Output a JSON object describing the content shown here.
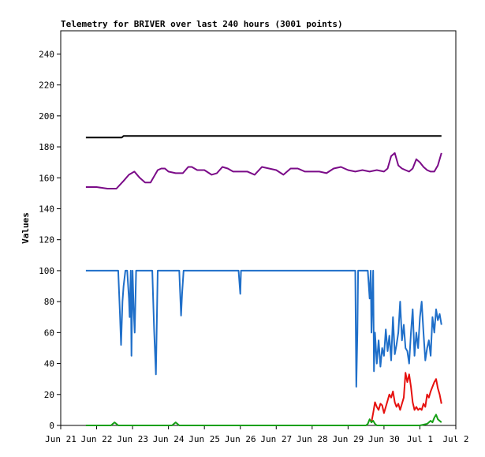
{
  "chart_data": {
    "type": "line",
    "title": "Telemetry for BRIVER over last 240 hours (3001 points)",
    "xlabel": "",
    "ylabel": "Values",
    "ylim": [
      0,
      255
    ],
    "xlim": [
      0,
      11
    ],
    "yticks": [
      0,
      20,
      40,
      60,
      80,
      100,
      120,
      140,
      160,
      180,
      200,
      220,
      240
    ],
    "xtick_labels": [
      "Jun 21",
      "Jun 22",
      "Jun 23",
      "Jun 24",
      "Jun 25",
      "Jun 26",
      "Jun 27",
      "Jun 28",
      "Jun 29",
      "Jun 30",
      "Jul 1",
      "Jul 2"
    ],
    "grid": false,
    "legend": "none",
    "series": [
      {
        "color": "#000000",
        "x": [
          0.7,
          1.7,
          1.75,
          3.0,
          6.0,
          9.0,
          10.6
        ],
        "y": [
          186,
          186,
          187,
          187,
          187,
          187,
          187
        ]
      },
      {
        "color": "#7b0b88",
        "x": [
          0.7,
          1.0,
          1.3,
          1.55,
          1.75,
          1.9,
          2.05,
          2.2,
          2.35,
          2.5,
          2.7,
          2.8,
          2.9,
          3.0,
          3.2,
          3.4,
          3.55,
          3.65,
          3.8,
          4.0,
          4.2,
          4.35,
          4.5,
          4.65,
          4.8,
          5.0,
          5.2,
          5.4,
          5.6,
          5.8,
          6.0,
          6.2,
          6.4,
          6.6,
          6.8,
          7.0,
          7.2,
          7.4,
          7.6,
          7.8,
          8.0,
          8.2,
          8.4,
          8.6,
          8.8,
          9.0,
          9.1,
          9.2,
          9.3,
          9.4,
          9.5,
          9.6,
          9.7,
          9.8,
          9.9,
          10.0,
          10.1,
          10.2,
          10.3,
          10.4,
          10.5,
          10.6
        ],
        "y": [
          154,
          154,
          153,
          153,
          158,
          162,
          164,
          160,
          157,
          157,
          165,
          166,
          166,
          164,
          163,
          163,
          167,
          167,
          165,
          165,
          162,
          163,
          167,
          166,
          164,
          164,
          164,
          162,
          167,
          166,
          165,
          162,
          166,
          166,
          164,
          164,
          164,
          163,
          166,
          167,
          165,
          164,
          165,
          164,
          165,
          164,
          166,
          174,
          176,
          168,
          166,
          165,
          164,
          166,
          172,
          170,
          167,
          165,
          164,
          164,
          168,
          176
        ]
      },
      {
        "color": "#1f6fc9",
        "x": [
          0.7,
          1.6,
          1.65,
          1.68,
          1.72,
          1.75,
          1.8,
          1.85,
          1.9,
          1.92,
          1.95,
          1.97,
          2.0,
          2.03,
          2.06,
          2.1,
          2.2,
          2.55,
          2.6,
          2.65,
          2.7,
          2.8,
          3.3,
          3.35,
          3.38,
          3.42,
          3.5,
          4.0,
          4.95,
          5.0,
          5.02,
          5.06,
          5.1,
          8.2,
          8.23,
          8.26,
          8.28,
          8.3,
          8.4,
          8.55,
          8.6,
          8.63,
          8.65,
          8.7,
          8.72,
          8.75,
          8.8,
          8.85,
          8.9,
          8.95,
          9.0,
          9.05,
          9.1,
          9.15,
          9.2,
          9.25,
          9.3,
          9.35,
          9.4,
          9.45,
          9.5,
          9.55,
          9.6,
          9.65,
          9.7,
          9.75,
          9.8,
          9.85,
          9.9,
          9.95,
          10.0,
          10.05,
          10.1,
          10.15,
          10.2,
          10.25,
          10.3,
          10.35,
          10.4,
          10.45,
          10.5,
          10.55,
          10.6
        ],
        "y": [
          100,
          100,
          72,
          52,
          80,
          90,
          100,
          100,
          82,
          70,
          100,
          45,
          100,
          75,
          60,
          100,
          100,
          100,
          62,
          33,
          100,
          100,
          100,
          71,
          85,
          100,
          100,
          100,
          100,
          85,
          100,
          100,
          100,
          100,
          25,
          60,
          100,
          100,
          100,
          100,
          82,
          100,
          60,
          100,
          35,
          60,
          40,
          55,
          38,
          50,
          45,
          62,
          48,
          58,
          42,
          70,
          46,
          52,
          60,
          80,
          55,
          65,
          50,
          48,
          40,
          60,
          75,
          45,
          60,
          50,
          70,
          80,
          60,
          42,
          50,
          55,
          45,
          70,
          60,
          75,
          68,
          72,
          65
        ]
      },
      {
        "color": "#e6110f",
        "x": [
          8.65,
          8.7,
          8.75,
          8.8,
          8.85,
          8.9,
          8.95,
          9.0,
          9.05,
          9.1,
          9.15,
          9.2,
          9.25,
          9.3,
          9.35,
          9.4,
          9.45,
          9.5,
          9.55,
          9.6,
          9.65,
          9.7,
          9.75,
          9.8,
          9.85,
          9.9,
          9.95,
          10.0,
          10.05,
          10.1,
          10.15,
          10.2,
          10.25,
          10.3,
          10.35,
          10.4,
          10.45,
          10.5,
          10.55,
          10.6
        ],
        "y": [
          2,
          8,
          15,
          12,
          10,
          14,
          13,
          8,
          12,
          16,
          20,
          18,
          22,
          15,
          12,
          14,
          10,
          14,
          18,
          34,
          28,
          33,
          25,
          15,
          10,
          12,
          10,
          11,
          10,
          14,
          12,
          20,
          18,
          22,
          25,
          28,
          30,
          24,
          20,
          14
        ]
      },
      {
        "color": "#16a016",
        "x": [
          0.7,
          1.4,
          1.45,
          1.5,
          1.55,
          1.6,
          3.1,
          3.15,
          3.2,
          3.25,
          3.3,
          8.5,
          8.55,
          8.6,
          8.65,
          8.7,
          8.75,
          8.8,
          9.5,
          10.0,
          10.2,
          10.3,
          10.35,
          10.4,
          10.45,
          10.5,
          10.6
        ],
        "y": [
          0,
          0,
          1,
          2,
          1,
          0,
          0,
          1,
          2,
          1,
          0,
          0,
          1,
          4,
          2,
          3,
          1,
          0,
          0,
          0,
          1,
          3,
          2,
          5,
          7,
          4,
          2
        ]
      }
    ]
  }
}
